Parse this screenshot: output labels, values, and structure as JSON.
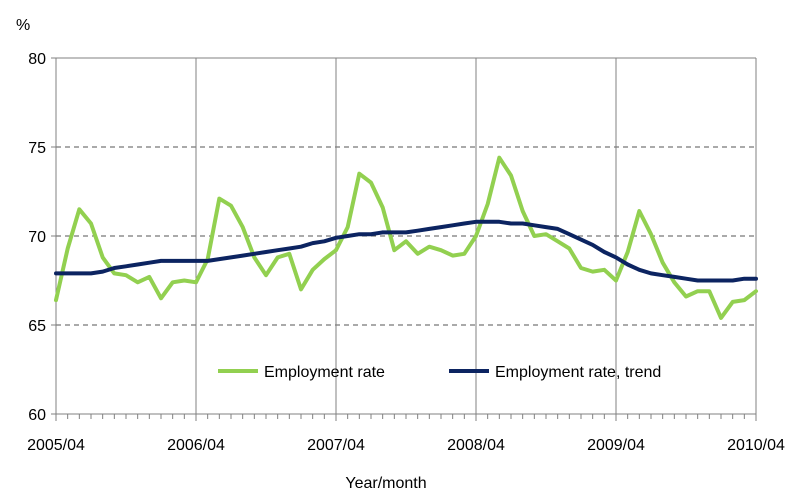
{
  "chart_data": {
    "type": "line",
    "ylabel": "%",
    "xlabel": "Year/month",
    "ylim": [
      60,
      80
    ],
    "yticks": [
      60,
      65,
      70,
      75,
      80
    ],
    "xlim": [
      0,
      60
    ],
    "xtick_labels": [
      {
        "index": 0,
        "label": "2005/04"
      },
      {
        "index": 12,
        "label": "2006/04"
      },
      {
        "index": 24,
        "label": "2007/04"
      },
      {
        "index": 36,
        "label": "2008/04"
      },
      {
        "index": 48,
        "label": "2009/04"
      },
      {
        "index": 60,
        "label": "2010/04"
      }
    ],
    "grid": {
      "horizontal": "dashed",
      "vertical": "solid-at-year"
    },
    "legend_position": "bottom-inside",
    "series": [
      {
        "name": "Employment rate",
        "color": "#92d050",
        "values": [
          66.4,
          69.3,
          71.5,
          70.7,
          68.8,
          67.9,
          67.8,
          67.4,
          67.7,
          66.5,
          67.4,
          67.5,
          67.4,
          68.7,
          72.1,
          71.7,
          70.5,
          68.8,
          67.8,
          68.8,
          69.0,
          67.0,
          68.1,
          68.7,
          69.2,
          70.5,
          73.5,
          73.0,
          71.6,
          69.2,
          69.7,
          69.0,
          69.4,
          69.2,
          68.9,
          69.0,
          70.0,
          71.8,
          74.4,
          73.4,
          71.4,
          70.0,
          70.1,
          69.7,
          69.3,
          68.2,
          68.0,
          68.1,
          67.5,
          69.1,
          71.4,
          70.1,
          68.5,
          67.4,
          66.6,
          66.9,
          66.9,
          65.4,
          66.3,
          66.4,
          66.9
        ]
      },
      {
        "name": "Employment rate, trend",
        "color": "#0c2461",
        "values": [
          67.9,
          67.9,
          67.9,
          67.9,
          68.0,
          68.2,
          68.3,
          68.4,
          68.5,
          68.6,
          68.6,
          68.6,
          68.6,
          68.6,
          68.7,
          68.8,
          68.9,
          69.0,
          69.1,
          69.2,
          69.3,
          69.4,
          69.6,
          69.7,
          69.9,
          70.0,
          70.1,
          70.1,
          70.2,
          70.2,
          70.2,
          70.3,
          70.4,
          70.5,
          70.6,
          70.7,
          70.8,
          70.8,
          70.8,
          70.7,
          70.7,
          70.6,
          70.5,
          70.4,
          70.1,
          69.8,
          69.5,
          69.1,
          68.8,
          68.4,
          68.1,
          67.9,
          67.8,
          67.7,
          67.6,
          67.5,
          67.5,
          67.5,
          67.5,
          67.6,
          67.6
        ]
      }
    ]
  }
}
